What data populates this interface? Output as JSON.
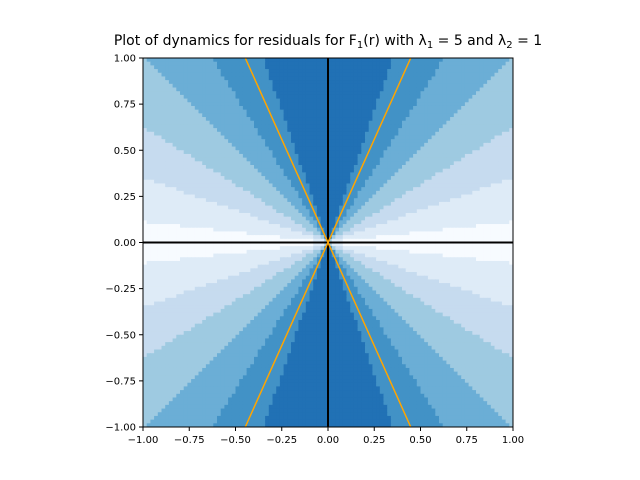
{
  "chart_data": {
    "type": "heatmap",
    "title": {
      "prefix": "Plot of dynamics for residuals for F",
      "f_sub": "1",
      "mid1": "(r) with λ",
      "l1_sub": "1",
      "mid2": " = 5 and λ",
      "l2_sub": "2",
      "suffix": " = 1"
    },
    "xlabel": "",
    "ylabel": "",
    "xlim": [
      -1.0,
      1.0
    ],
    "ylim": [
      -1.0,
      1.0
    ],
    "xticks": [
      -1.0,
      -0.75,
      -0.5,
      -0.25,
      0.0,
      0.25,
      0.5,
      0.75,
      1.0
    ],
    "yticks": [
      -1.0,
      -0.75,
      -0.5,
      -0.25,
      0.0,
      0.25,
      0.5,
      0.75,
      1.0
    ],
    "xtick_labels": [
      "−1.00",
      "−0.75",
      "−0.50",
      "−0.25",
      "0.00",
      "0.25",
      "0.50",
      "0.75",
      "1.00"
    ],
    "ytick_labels": [
      "−1.00",
      "−0.75",
      "−0.50",
      "−0.25",
      "0.00",
      "0.25",
      "0.50",
      "0.75",
      "1.00"
    ],
    "colormap": "Blues",
    "color_levels": [
      "#f7fbff",
      "#deebf7",
      "#c6dbef",
      "#9ecae1",
      "#6baed6",
      "#4292c6",
      "#2171b5",
      "#2171b5"
    ],
    "grid_resolution": 100,
    "lambda1": 5,
    "lambda2": 1,
    "axis_lines": [
      {
        "orientation": "horizontal",
        "value": 0.0,
        "color": "#000000"
      },
      {
        "orientation": "vertical",
        "value": 0.0,
        "color": "#000000"
      }
    ],
    "lines": [
      {
        "name": "",
        "slope": 2.236,
        "color": "#ffa500"
      },
      {
        "name": "",
        "slope": -2.236,
        "color": "#ffa500"
      }
    ],
    "grid": false,
    "legend": "none"
  }
}
